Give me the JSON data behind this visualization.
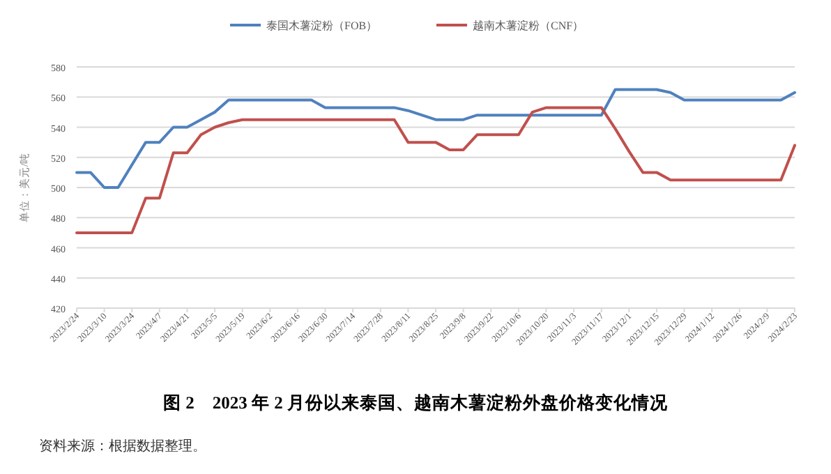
{
  "chart_data": {
    "type": "line",
    "title": "图 2　2023 年 2 月份以来泰国、越南木薯淀粉外盘价格变化情况",
    "ylabel": "单位：美元/吨",
    "annotations": [
      "资料来源：根据数据整理。"
    ],
    "categories": [
      "2023/2/24",
      null,
      "2023/3/10",
      null,
      "2023/3/24",
      null,
      "2023/4/7",
      null,
      "2023/4/21",
      null,
      "2023/5/5",
      null,
      "2023/5/19",
      null,
      "2023/6/2",
      null,
      "2023/6/16",
      null,
      "2023/6/30",
      null,
      "2023/7/14",
      null,
      "2023/7/28",
      null,
      "2023/8/11",
      null,
      "2023/8/25",
      null,
      "2023/9/8",
      null,
      "2023/9/22",
      null,
      "2023/10/6",
      null,
      "2023/10/20",
      null,
      "2023/11/3",
      null,
      "2023/11/17",
      null,
      "2023/12/1",
      null,
      "2023/12/15",
      null,
      "2023/12/29",
      null,
      "2024/1/12",
      null,
      "2024/1/26",
      null,
      "2024/2/9",
      null,
      "2024/2/23"
    ],
    "series": [
      {
        "name": "泰国木薯淀粉（FOB）",
        "color": "#4f81bd",
        "values": [
          510,
          510,
          500,
          500,
          515,
          530,
          530,
          540,
          540,
          545,
          550,
          558,
          558,
          558,
          558,
          558,
          558,
          558,
          553,
          553,
          553,
          553,
          553,
          553,
          551,
          548,
          545,
          545,
          545,
          548,
          548,
          548,
          548,
          548,
          548,
          548,
          548,
          548,
          548,
          565,
          565,
          565,
          565,
          563,
          558,
          558,
          558,
          558,
          558,
          558,
          558,
          558,
          563
        ]
      },
      {
        "name": "越南木薯淀粉（CNF）",
        "color": "#c0504d",
        "values": [
          470,
          470,
          470,
          470,
          470,
          493,
          493,
          523,
          523,
          535,
          540,
          543,
          545,
          545,
          545,
          545,
          545,
          545,
          545,
          545,
          545,
          545,
          545,
          545,
          530,
          530,
          530,
          525,
          525,
          535,
          535,
          535,
          535,
          550,
          553,
          553,
          553,
          553,
          553,
          539,
          524,
          510,
          510,
          505,
          505,
          505,
          505,
          505,
          505,
          505,
          505,
          505,
          528
        ]
      }
    ],
    "ylim": [
      420,
      580
    ],
    "yticks": [
      420,
      440,
      460,
      480,
      500,
      520,
      540,
      560,
      580
    ],
    "grid": "y",
    "legend": "top"
  }
}
